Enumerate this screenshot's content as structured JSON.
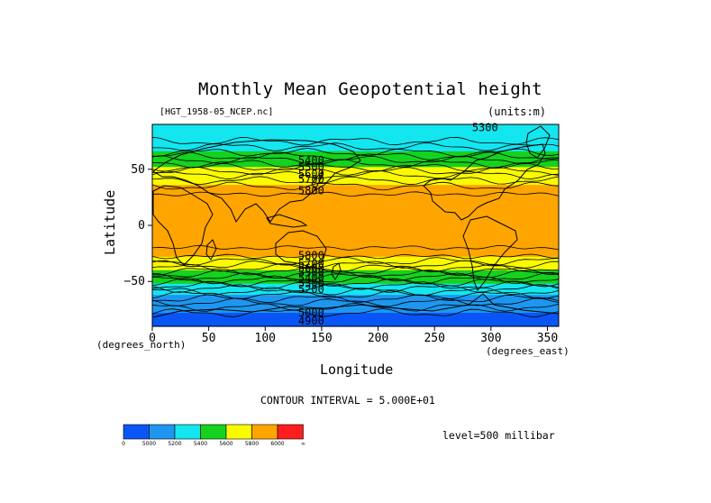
{
  "chart_data": {
    "type": "heatmap",
    "title": "Monthly Mean Geopotential height",
    "dataset_label": "[HGT_1958-05_NCEP.nc]",
    "units_label": "(units:m)",
    "xlabel": "Longitude",
    "ylabel": "Latitude",
    "x_unit_label": "(degrees_east)",
    "y_unit_label": "(degrees_north)",
    "xlim": [
      0,
      360
    ],
    "ylim": [
      -90,
      90
    ],
    "x_ticks": [
      0,
      50,
      100,
      150,
      200,
      250,
      300,
      350
    ],
    "y_ticks": [
      -50,
      0,
      50
    ],
    "contour_interval_label": "CONTOUR INTERVAL = 5.000E+01",
    "level_label": "level=500 millibar",
    "zonal_profile": [
      {
        "lat": 90,
        "value": 5250
      },
      {
        "lat": 75,
        "value": 5300
      },
      {
        "lat": 65,
        "value": 5400
      },
      {
        "lat": 55,
        "value": 5550
      },
      {
        "lat": 45,
        "value": 5700
      },
      {
        "lat": 35,
        "value": 5800
      },
      {
        "lat": 25,
        "value": 5870
      },
      {
        "lat": 0,
        "value": 5880
      },
      {
        "lat": -15,
        "value": 5870
      },
      {
        "lat": -25,
        "value": 5830
      },
      {
        "lat": -32,
        "value": 5750
      },
      {
        "lat": -38,
        "value": 5650
      },
      {
        "lat": -45,
        "value": 5520
      },
      {
        "lat": -52,
        "value": 5380
      },
      {
        "lat": -60,
        "value": 5230
      },
      {
        "lat": -70,
        "value": 5080
      },
      {
        "lat": -80,
        "value": 4980
      },
      {
        "lat": -90,
        "value": 4950
      }
    ],
    "contour_labels": [
      {
        "lon": 128,
        "lat": 58,
        "text": "5400"
      },
      {
        "lon": 128,
        "lat": 52,
        "text": "5500"
      },
      {
        "lon": 128,
        "lat": 46,
        "text": "5600"
      },
      {
        "lon": 128,
        "lat": 41,
        "text": "5700"
      },
      {
        "lon": 128,
        "lat": 31,
        "text": "5800"
      },
      {
        "lon": 128,
        "lat": -27,
        "text": "5800"
      },
      {
        "lon": 128,
        "lat": -34,
        "text": "5700"
      },
      {
        "lon": 128,
        "lat": -38,
        "text": "5600"
      },
      {
        "lon": 128,
        "lat": -42,
        "text": "5500"
      },
      {
        "lon": 128,
        "lat": -47,
        "text": "5400"
      },
      {
        "lon": 128,
        "lat": -52,
        "text": "5300"
      },
      {
        "lon": 128,
        "lat": -57,
        "text": "5200"
      },
      {
        "lon": 128,
        "lat": -78,
        "text": "5000"
      },
      {
        "lon": 128,
        "lat": -85,
        "text": "4900"
      },
      {
        "lon": 282,
        "lat": 87,
        "text": "5300"
      }
    ],
    "colorbar": {
      "colors": [
        "#0a55f5",
        "#1e96f0",
        "#14e6f0",
        "#14d21e",
        "#fafa00",
        "#ffa500",
        "#ff1e1e"
      ],
      "labels": [
        "0",
        "5000",
        "5200",
        "5400",
        "5600",
        "5800",
        "6000",
        "∞"
      ],
      "thresholds": [
        5000,
        5200,
        5400,
        5600,
        5800,
        6000
      ]
    }
  }
}
